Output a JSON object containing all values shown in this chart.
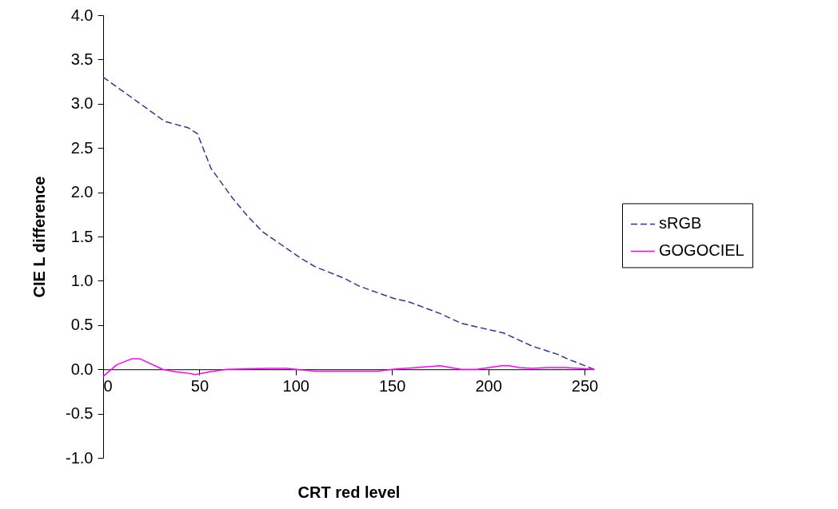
{
  "chart_data": {
    "type": "line",
    "xlabel": "CRT red level",
    "ylabel": "CIE L difference",
    "xlim": [
      0,
      255
    ],
    "xticks": [
      0,
      50,
      100,
      150,
      200,
      250
    ],
    "ylim": [
      -1,
      4
    ],
    "yticks": [
      {
        "value": -1,
        "label": "-1.0"
      },
      {
        "value": -0.5,
        "label": "-0.5"
      },
      {
        "value": 0,
        "label": "0.0"
      },
      {
        "value": 0.5,
        "label": "0.5"
      },
      {
        "value": 1,
        "label": "1.0"
      },
      {
        "value": 1.5,
        "label": "1.5"
      },
      {
        "value": 2,
        "label": "2.0"
      },
      {
        "value": 2.5,
        "label": "2.5"
      },
      {
        "value": 3,
        "label": "3.0"
      },
      {
        "value": 3.5,
        "label": "3.5"
      },
      {
        "value": 4,
        "label": "4.0"
      }
    ],
    "grid": false,
    "legend": "right",
    "marker": "none",
    "series": [
      {
        "name": "sRGB",
        "color": "#333399",
        "line_style": "dashed",
        "x": [
          0,
          18,
          32,
          44,
          49,
          56,
          67,
          75,
          83,
          103,
          110,
          125,
          133,
          151,
          159,
          175,
          186,
          202,
          208,
          223,
          236,
          242,
          255
        ],
        "values": [
          3.3,
          3.02,
          2.8,
          2.73,
          2.66,
          2.27,
          1.94,
          1.73,
          1.55,
          1.25,
          1.16,
          1.03,
          0.94,
          0.8,
          0.76,
          0.63,
          0.52,
          0.44,
          0.41,
          0.26,
          0.17,
          0.11,
          0
        ]
      },
      {
        "name": "GOGOCIEL",
        "color": "#ff00ff",
        "line_style": "solid",
        "x": [
          0,
          7,
          15,
          19,
          31,
          38,
          43,
          48,
          55,
          64,
          86,
          95,
          110,
          143,
          150,
          175,
          186,
          194,
          207,
          211,
          216,
          223,
          231,
          240,
          255
        ],
        "values": [
          -0.08,
          0.05,
          0.12,
          0.12,
          0,
          -0.03,
          -0.04,
          -0.06,
          -0.03,
          0,
          0.01,
          0.01,
          -0.02,
          -0.02,
          0,
          0.04,
          0,
          0,
          0.04,
          0.04,
          0.02,
          0.01,
          0.02,
          0.02,
          0
        ]
      }
    ]
  }
}
